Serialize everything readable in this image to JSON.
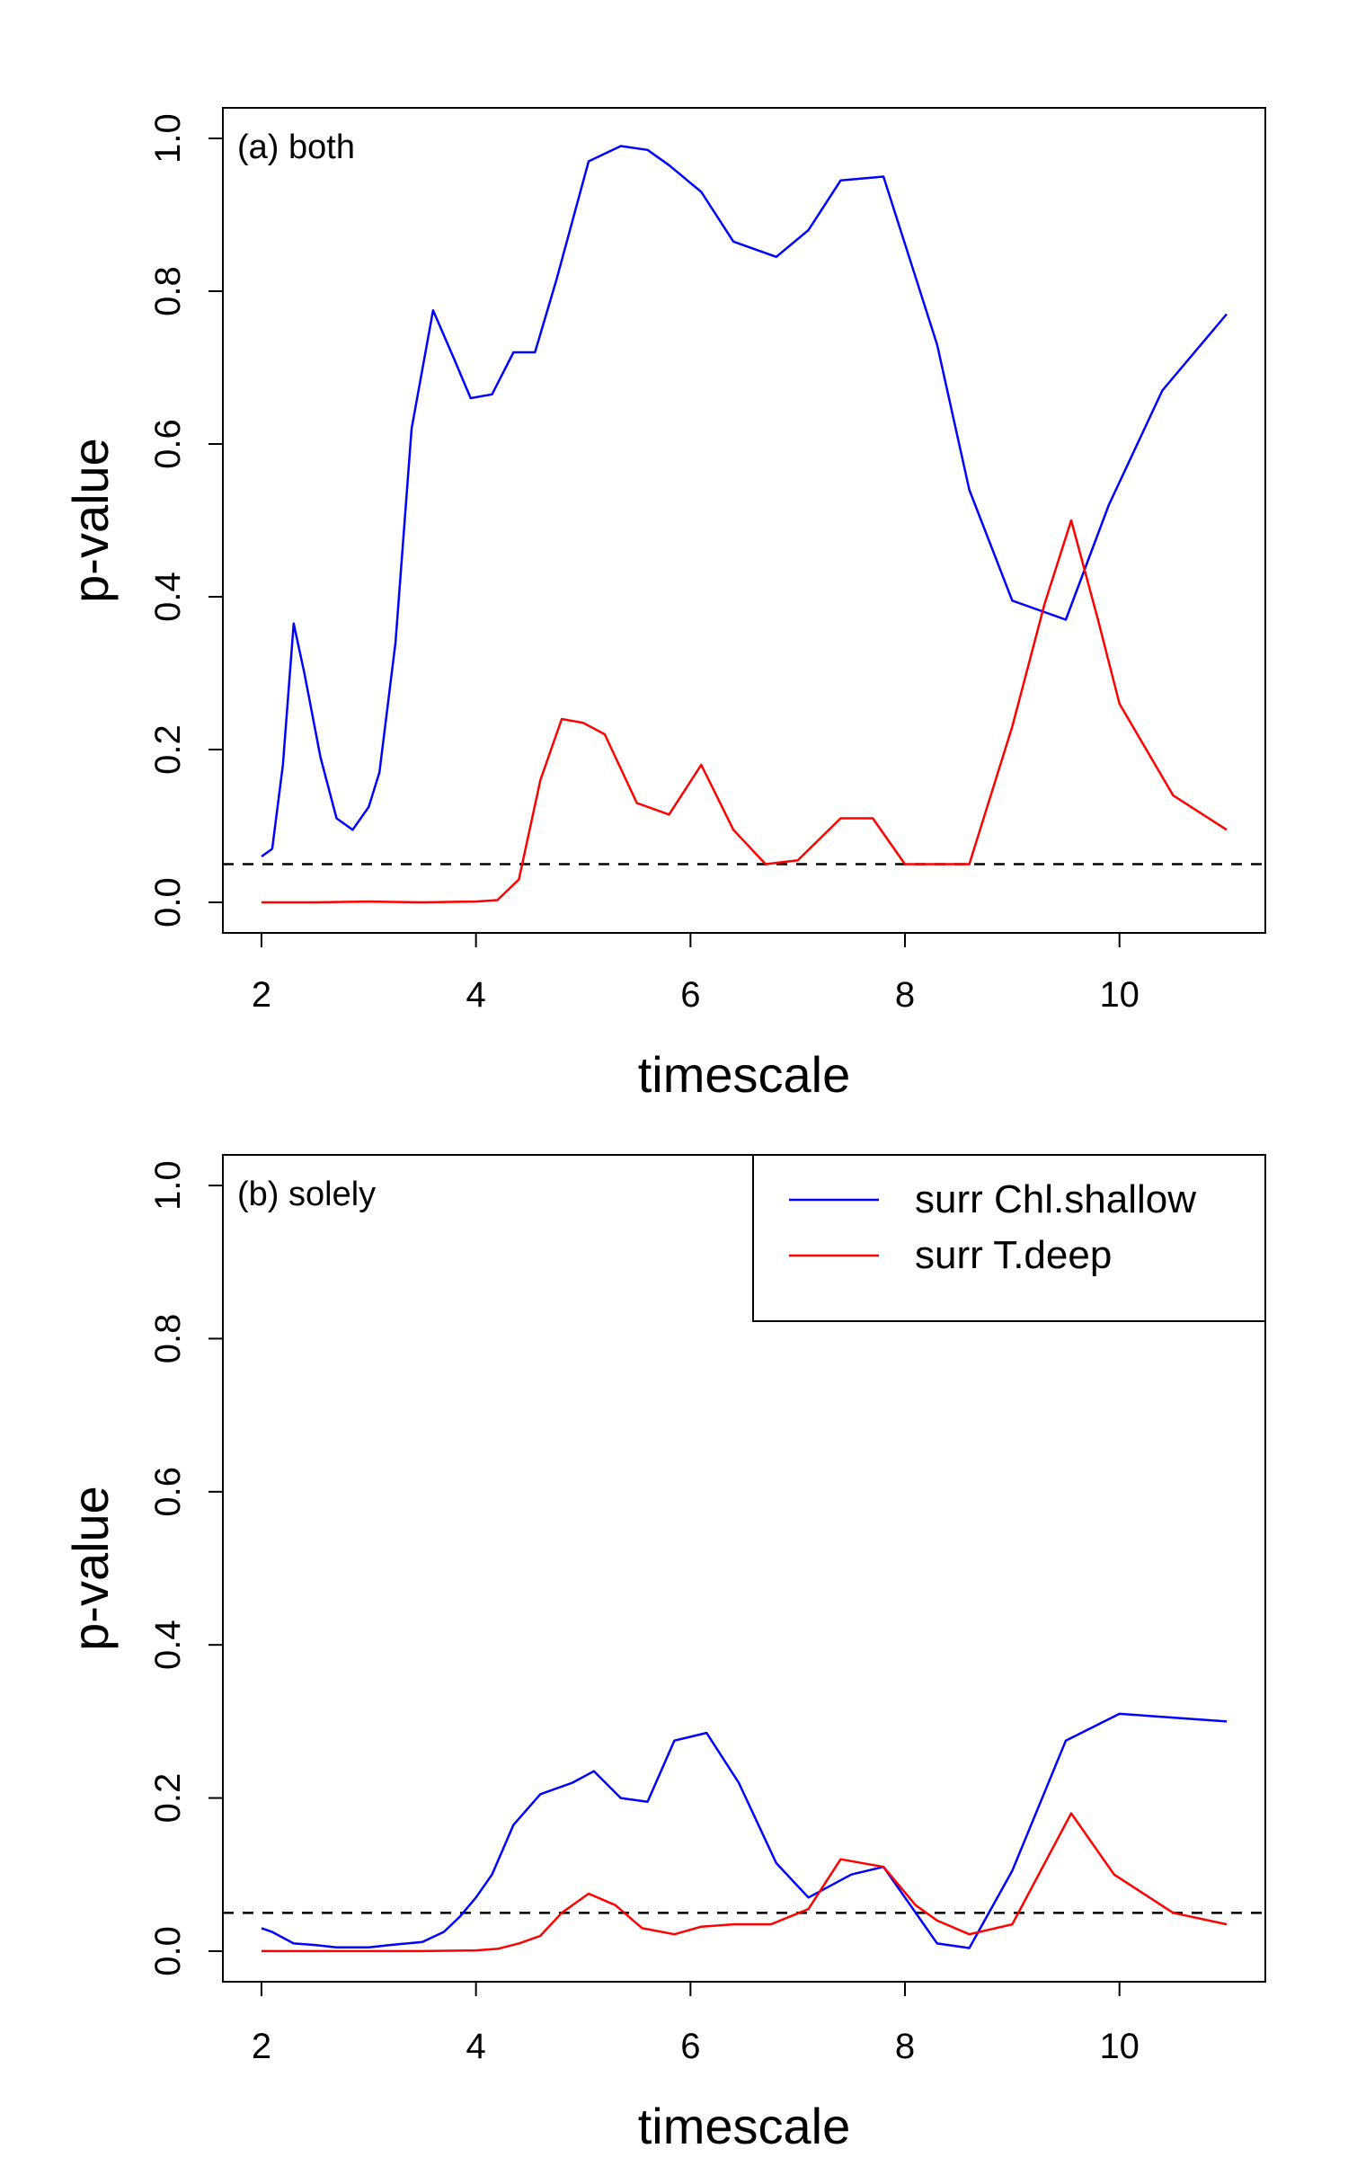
{
  "chart_data": [
    {
      "type": "line",
      "panel_label": "(a) both",
      "xlabel": "timescale",
      "ylabel": "p-value",
      "xlim": [
        2,
        11
      ],
      "ylim": [
        0,
        1
      ],
      "xticks": [
        2,
        4,
        6,
        8,
        10
      ],
      "yticks": [
        0.0,
        0.2,
        0.4,
        0.6,
        0.8,
        1.0
      ],
      "ytick_labels": [
        "0.0",
        "0.2",
        "0.4",
        "0.6",
        "0.8",
        "1.0"
      ],
      "reference_line": {
        "y": 0.05,
        "style": "dashed"
      },
      "series": [
        {
          "color": "#0000ff",
          "x": [
            2.0,
            2.1,
            2.2,
            2.3,
            2.4,
            2.55,
            2.7,
            2.85,
            3.0,
            3.1,
            3.25,
            3.4,
            3.6,
            3.8,
            3.95,
            4.15,
            4.35,
            4.55,
            4.75,
            5.05,
            5.35,
            5.6,
            5.8,
            6.1,
            6.4,
            6.8,
            7.1,
            7.4,
            7.8,
            8.3,
            8.6,
            9.0,
            9.5,
            9.9,
            10.4,
            11.0
          ],
          "y": [
            0.06,
            0.07,
            0.18,
            0.365,
            0.3,
            0.19,
            0.11,
            0.095,
            0.125,
            0.17,
            0.34,
            0.62,
            0.775,
            0.71,
            0.66,
            0.665,
            0.72,
            0.72,
            0.815,
            0.97,
            0.99,
            0.985,
            0.965,
            0.93,
            0.865,
            0.845,
            0.88,
            0.945,
            0.95,
            0.73,
            0.54,
            0.395,
            0.37,
            0.52,
            0.67,
            0.77
          ]
        },
        {
          "color": "#ff0000",
          "x": [
            2.0,
            2.5,
            3.0,
            3.5,
            4.0,
            4.2,
            4.4,
            4.6,
            4.8,
            5.0,
            5.2,
            5.5,
            5.8,
            6.1,
            6.4,
            6.7,
            7.0,
            7.4,
            7.7,
            8.0,
            8.3,
            8.6,
            9.0,
            9.3,
            9.55,
            9.8,
            10.0,
            10.5,
            11.0
          ],
          "y": [
            0.0,
            0.0,
            0.001,
            0.0,
            0.001,
            0.003,
            0.03,
            0.16,
            0.24,
            0.235,
            0.22,
            0.13,
            0.115,
            0.18,
            0.095,
            0.05,
            0.055,
            0.11,
            0.11,
            0.05,
            0.05,
            0.05,
            0.23,
            0.39,
            0.5,
            0.37,
            0.26,
            0.14,
            0.095
          ]
        }
      ]
    },
    {
      "type": "line",
      "panel_label": "(b) solely",
      "xlabel": "timescale",
      "ylabel": "p-value",
      "xlim": [
        2,
        11
      ],
      "ylim": [
        0,
        1
      ],
      "xticks": [
        2,
        4,
        6,
        8,
        10
      ],
      "yticks": [
        0.0,
        0.2,
        0.4,
        0.6,
        0.8,
        1.0
      ],
      "ytick_labels": [
        "0.0",
        "0.2",
        "0.4",
        "0.6",
        "0.8",
        "1.0"
      ],
      "reference_line": {
        "y": 0.05,
        "style": "dashed"
      },
      "legend": {
        "position": "top-right",
        "entries": [
          {
            "label": "surr Chl.shallow",
            "color": "#0000ff"
          },
          {
            "label": "surr T.deep",
            "color": "#ff0000"
          }
        ]
      },
      "series": [
        {
          "name": "surr Chl.shallow",
          "color": "#0000ff",
          "x": [
            2.0,
            2.1,
            2.3,
            2.5,
            2.7,
            3.0,
            3.2,
            3.5,
            3.7,
            3.85,
            4.0,
            4.15,
            4.35,
            4.6,
            4.9,
            5.1,
            5.35,
            5.6,
            5.85,
            6.15,
            6.45,
            6.8,
            7.1,
            7.5,
            7.8,
            8.05,
            8.3,
            8.6,
            9.0,
            9.5,
            10.0,
            10.5,
            11.0
          ],
          "y": [
            0.03,
            0.025,
            0.01,
            0.008,
            0.005,
            0.005,
            0.008,
            0.012,
            0.025,
            0.045,
            0.07,
            0.1,
            0.165,
            0.205,
            0.22,
            0.235,
            0.2,
            0.195,
            0.275,
            0.285,
            0.22,
            0.115,
            0.07,
            0.1,
            0.11,
            0.06,
            0.01,
            0.004,
            0.105,
            0.275,
            0.31,
            0.305,
            0.3
          ]
        },
        {
          "name": "surr T.deep",
          "color": "#ff0000",
          "x": [
            2.0,
            2.5,
            3.0,
            3.5,
            4.0,
            4.2,
            4.4,
            4.6,
            4.8,
            5.05,
            5.3,
            5.55,
            5.85,
            6.1,
            6.4,
            6.75,
            7.1,
            7.4,
            7.8,
            8.1,
            8.3,
            8.6,
            9.0,
            9.55,
            9.95,
            10.5,
            11.0
          ],
          "y": [
            0.0,
            0.0,
            0.0,
            0.0,
            0.001,
            0.003,
            0.01,
            0.02,
            0.05,
            0.075,
            0.06,
            0.03,
            0.022,
            0.032,
            0.035,
            0.035,
            0.055,
            0.12,
            0.11,
            0.06,
            0.04,
            0.022,
            0.035,
            0.18,
            0.1,
            0.05,
            0.035
          ]
        }
      ]
    }
  ]
}
